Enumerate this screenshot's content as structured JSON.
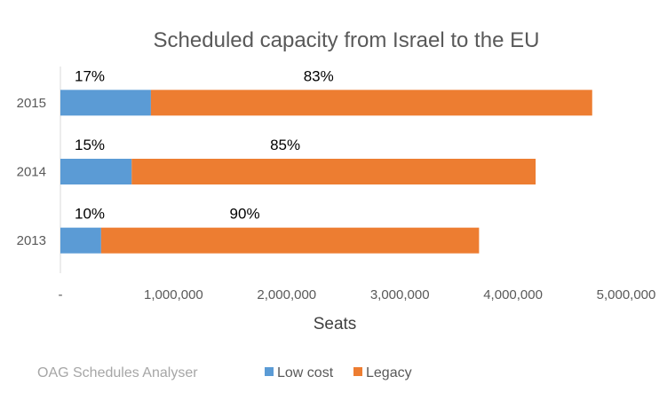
{
  "chart_data": {
    "type": "bar",
    "orientation": "horizontal",
    "stacked": true,
    "title": "Scheduled capacity from Israel to the EU",
    "xlabel": "Seats",
    "ylabel": "",
    "categories": [
      "2015",
      "2014",
      "2013"
    ],
    "series": [
      {
        "name": "Low cost",
        "color": "#5b9bd5",
        "values": [
          800000,
          630000,
          360000
        ],
        "labels": [
          "17%",
          "15%",
          "10%"
        ]
      },
      {
        "name": "Legacy",
        "color": "#ed7d31",
        "values": [
          3900000,
          3570000,
          3340000
        ],
        "labels": [
          "83%",
          "85%",
          "90%"
        ]
      }
    ],
    "xlim": [
      0,
      5000000
    ],
    "xticks": [
      {
        "value": 0,
        "label": "-"
      },
      {
        "value": 1000000,
        "label": "1,000,000"
      },
      {
        "value": 2000000,
        "label": "2,000,000"
      },
      {
        "value": 3000000,
        "label": "3,000,000"
      },
      {
        "value": 4000000,
        "label": "4,000,000"
      },
      {
        "value": 5000000,
        "label": "5,000,000"
      }
    ],
    "grid": false,
    "legend_position": "bottom"
  },
  "source_note": "OAG Schedules Analyser"
}
